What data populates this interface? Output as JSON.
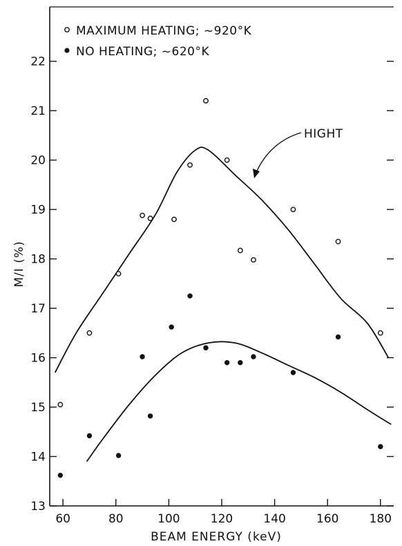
{
  "chart_data": {
    "type": "scatter",
    "xlabel": "BEAM ENERGY (keV)",
    "ylabel": "M/I (%)",
    "xlim": [
      55,
      185
    ],
    "ylim": [
      13,
      23.1
    ],
    "xticks": [
      60,
      80,
      100,
      120,
      140,
      160,
      180
    ],
    "yticks": [
      13,
      14,
      15,
      16,
      17,
      18,
      19,
      20,
      21,
      22
    ],
    "grid": false,
    "legend_position": "top-left",
    "series": [
      {
        "name": "MAXIMUM HEATING; ~920°K",
        "marker": "open-circle",
        "points": [
          [
            59,
            15.05
          ],
          [
            70,
            16.5
          ],
          [
            81,
            17.7
          ],
          [
            90,
            18.88
          ],
          [
            93,
            18.82
          ],
          [
            102,
            18.8
          ],
          [
            108,
            19.9
          ],
          [
            114,
            21.2
          ],
          [
            122,
            20.0
          ],
          [
            127,
            18.17
          ],
          [
            132,
            17.98
          ],
          [
            147,
            19.0
          ],
          [
            164,
            18.35
          ],
          [
            180,
            16.5
          ]
        ]
      },
      {
        "name": "NO HEATING; ~620°K",
        "marker": "filled-circle",
        "points": [
          [
            59,
            13.62
          ],
          [
            70,
            14.42
          ],
          [
            81,
            14.02
          ],
          [
            90,
            16.02
          ],
          [
            93,
            14.82
          ],
          [
            101,
            16.62
          ],
          [
            108,
            17.25
          ],
          [
            114,
            16.2
          ],
          [
            122,
            15.9
          ],
          [
            127,
            15.9
          ],
          [
            132,
            16.02
          ],
          [
            147,
            15.7
          ],
          [
            164,
            16.42
          ],
          [
            180,
            14.2
          ]
        ]
      }
    ],
    "curves": [
      {
        "label": "HIGHT",
        "points": [
          [
            57,
            15.7
          ],
          [
            65,
            16.5
          ],
          [
            75,
            17.3
          ],
          [
            85,
            18.1
          ],
          [
            95,
            18.9
          ],
          [
            103,
            19.75
          ],
          [
            110,
            20.2
          ],
          [
            115,
            20.2
          ],
          [
            125,
            19.7
          ],
          [
            135,
            19.2
          ],
          [
            145,
            18.6
          ],
          [
            155,
            17.9
          ],
          [
            165,
            17.2
          ],
          [
            175,
            16.7
          ],
          [
            183,
            16.0
          ]
        ]
      },
      {
        "label": "",
        "points": [
          [
            69,
            13.9
          ],
          [
            75,
            14.35
          ],
          [
            85,
            15.05
          ],
          [
            95,
            15.65
          ],
          [
            105,
            16.1
          ],
          [
            115,
            16.3
          ],
          [
            125,
            16.3
          ],
          [
            135,
            16.1
          ],
          [
            145,
            15.85
          ],
          [
            155,
            15.6
          ],
          [
            165,
            15.3
          ],
          [
            175,
            14.95
          ],
          [
            184,
            14.65
          ]
        ]
      }
    ],
    "annotations": [
      {
        "text": "HIGHT",
        "points_to": [
          124,
          19.7
        ]
      }
    ]
  }
}
